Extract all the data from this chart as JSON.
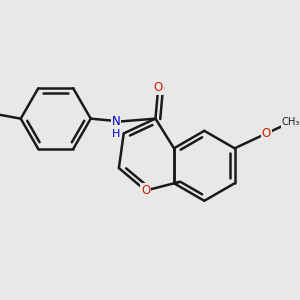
{
  "bg_color": "#e8e8e8",
  "bond_color": "#1a1a1a",
  "o_color": "#cc2200",
  "n_color": "#0000cc",
  "bond_lw": 1.8,
  "figsize": [
    3.0,
    3.0
  ],
  "dpi": 100,
  "xlim": [
    -2.6,
    2.6
  ],
  "ylim": [
    -2.6,
    2.6
  ],
  "BL": 0.62
}
